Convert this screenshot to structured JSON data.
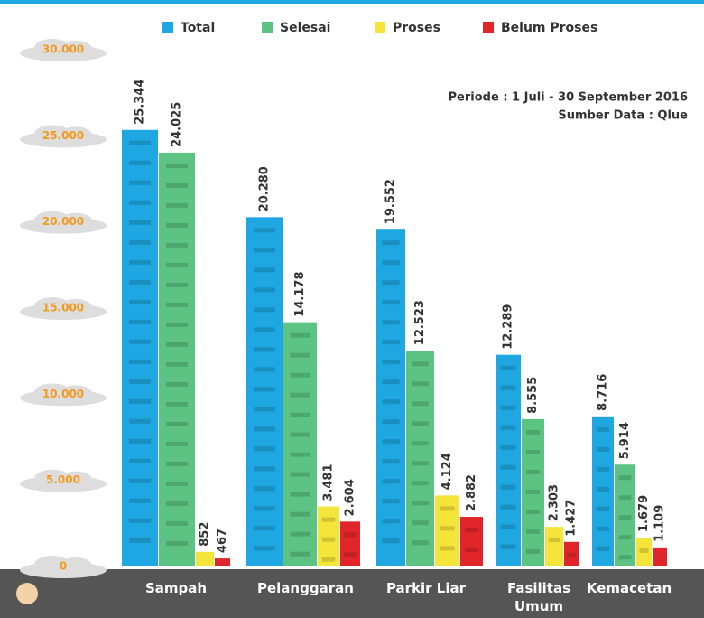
{
  "chart_data": {
    "type": "bar",
    "categories": [
      "Sampah",
      "Pelanggaran",
      "Parkir Liar",
      "Fasilitas Umum",
      "Kemacetan"
    ],
    "series": [
      {
        "name": "Total",
        "color": "#1ea7e1",
        "values": [
          25344,
          20280,
          19552,
          12289,
          8716
        ],
        "value_labels": [
          "25.344",
          "20.280",
          "19.552",
          "12.289",
          "8.716"
        ]
      },
      {
        "name": "Selesai",
        "color": "#5cc383",
        "values": [
          24025,
          14178,
          12523,
          8555,
          5914
        ],
        "value_labels": [
          "24.025",
          "14.178",
          "12.523",
          "8.555",
          "5.914"
        ]
      },
      {
        "name": "Proses",
        "color": "#f5e43a",
        "values": [
          852,
          3481,
          4124,
          2303,
          1679
        ],
        "value_labels": [
          "852",
          "3.481",
          "4.124",
          "2.303",
          "1.679"
        ]
      },
      {
        "name": "Belum Proses",
        "color": "#e0262a",
        "values": [
          467,
          2604,
          2882,
          1427,
          1109
        ],
        "value_labels": [
          "467",
          "2.604",
          "2.882",
          "1.427",
          "1.109"
        ]
      }
    ],
    "ylim": [
      0,
      30000
    ],
    "yticks": [
      0,
      {
        "value": 5000,
        "label": "5.000"
      },
      {
        "value": 10000,
        "label": "10.000"
      },
      {
        "value": 15000,
        "label": "15.000"
      },
      {
        "value": 20000,
        "label": "20.000"
      },
      {
        "value": 25000,
        "label": "25.000"
      },
      {
        "value": 30000,
        "label": "30.000"
      }
    ],
    "annotations": [
      "Periode : 1 Juli - 30 September 2016",
      "Sumber Data : Qlue"
    ]
  }
}
